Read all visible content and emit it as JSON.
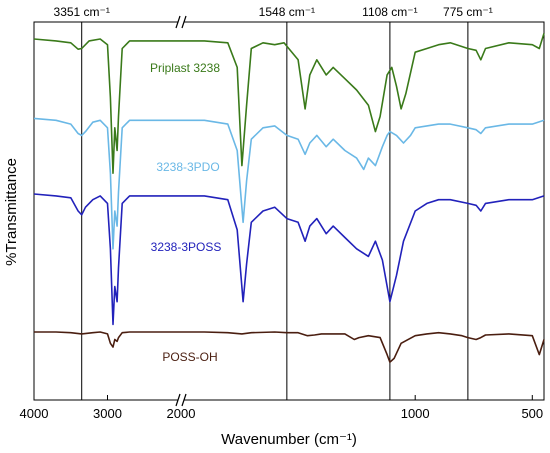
{
  "chart_data": {
    "type": "line",
    "xlabel": "Wavenumber (cm⁻¹)",
    "ylabel": "%Transmittance",
    "xlim": [
      4000,
      450
    ],
    "axis_break": [
      2000,
      2000
    ],
    "x_ticks": [
      4000,
      3000,
      2000,
      1000,
      500
    ],
    "x_tick_labels": [
      "4000",
      "3000",
      "2000",
      "1000",
      "500"
    ],
    "reference_lines": [
      {
        "x": 3351,
        "label": "3351 cm⁻¹"
      },
      {
        "x": 1548,
        "label": "1548 cm⁻¹"
      },
      {
        "x": 1108,
        "label": "1108 cm⁻¹"
      },
      {
        "x": 775,
        "label": "775 cm⁻¹"
      }
    ],
    "series": [
      {
        "name": "Priplast 3238",
        "color": "#3a7a1a",
        "points": [
          [
            4000,
            0.955
          ],
          [
            3700,
            0.95
          ],
          [
            3500,
            0.945
          ],
          [
            3400,
            0.928
          ],
          [
            3351,
            0.93
          ],
          [
            3250,
            0.95
          ],
          [
            3100,
            0.955
          ],
          [
            3000,
            0.94
          ],
          [
            2960,
            0.8
          ],
          [
            2925,
            0.6
          ],
          [
            2900,
            0.72
          ],
          [
            2870,
            0.66
          ],
          [
            2850,
            0.75
          ],
          [
            2800,
            0.93
          ],
          [
            2700,
            0.95
          ],
          [
            2000,
            0.95
          ],
          [
            1900,
            0.95
          ],
          [
            1800,
            0.945
          ],
          [
            1760,
            0.88
          ],
          [
            1740,
            0.62
          ],
          [
            1720,
            0.78
          ],
          [
            1700,
            0.93
          ],
          [
            1650,
            0.945
          ],
          [
            1600,
            0.94
          ],
          [
            1560,
            0.945
          ],
          [
            1500,
            0.9
          ],
          [
            1470,
            0.77
          ],
          [
            1450,
            0.86
          ],
          [
            1420,
            0.9
          ],
          [
            1380,
            0.86
          ],
          [
            1350,
            0.88
          ],
          [
            1300,
            0.85
          ],
          [
            1250,
            0.82
          ],
          [
            1200,
            0.78
          ],
          [
            1170,
            0.71
          ],
          [
            1150,
            0.75
          ],
          [
            1120,
            0.86
          ],
          [
            1100,
            0.88
          ],
          [
            1080,
            0.83
          ],
          [
            1060,
            0.77
          ],
          [
            1040,
            0.81
          ],
          [
            1000,
            0.92
          ],
          [
            950,
            0.93
          ],
          [
            900,
            0.94
          ],
          [
            850,
            0.945
          ],
          [
            775,
            0.93
          ],
          [
            740,
            0.925
          ],
          [
            720,
            0.9
          ],
          [
            700,
            0.93
          ],
          [
            600,
            0.945
          ],
          [
            500,
            0.94
          ],
          [
            470,
            0.93
          ],
          [
            450,
            0.97
          ]
        ]
      },
      {
        "name": "3238-3PDO",
        "color": "#6ab8e6",
        "points": [
          [
            4000,
            0.745
          ],
          [
            3700,
            0.74
          ],
          [
            3500,
            0.73
          ],
          [
            3400,
            0.705
          ],
          [
            3351,
            0.7
          ],
          [
            3300,
            0.71
          ],
          [
            3200,
            0.735
          ],
          [
            3100,
            0.74
          ],
          [
            3000,
            0.72
          ],
          [
            2960,
            0.6
          ],
          [
            2925,
            0.4
          ],
          [
            2900,
            0.5
          ],
          [
            2870,
            0.46
          ],
          [
            2850,
            0.55
          ],
          [
            2800,
            0.72
          ],
          [
            2700,
            0.74
          ],
          [
            2000,
            0.74
          ],
          [
            1900,
            0.74
          ],
          [
            1800,
            0.73
          ],
          [
            1760,
            0.66
          ],
          [
            1735,
            0.47
          ],
          [
            1720,
            0.58
          ],
          [
            1700,
            0.69
          ],
          [
            1650,
            0.72
          ],
          [
            1600,
            0.725
          ],
          [
            1548,
            0.7
          ],
          [
            1500,
            0.69
          ],
          [
            1470,
            0.65
          ],
          [
            1450,
            0.68
          ],
          [
            1420,
            0.7
          ],
          [
            1380,
            0.67
          ],
          [
            1350,
            0.69
          ],
          [
            1300,
            0.66
          ],
          [
            1250,
            0.64
          ],
          [
            1220,
            0.61
          ],
          [
            1200,
            0.64
          ],
          [
            1170,
            0.62
          ],
          [
            1140,
            0.67
          ],
          [
            1120,
            0.7
          ],
          [
            1108,
            0.71
          ],
          [
            1080,
            0.7
          ],
          [
            1050,
            0.68
          ],
          [
            1020,
            0.7
          ],
          [
            1000,
            0.72
          ],
          [
            950,
            0.725
          ],
          [
            900,
            0.73
          ],
          [
            850,
            0.73
          ],
          [
            775,
            0.72
          ],
          [
            740,
            0.715
          ],
          [
            720,
            0.705
          ],
          [
            700,
            0.72
          ],
          [
            600,
            0.73
          ],
          [
            500,
            0.73
          ],
          [
            450,
            0.74
          ]
        ]
      },
      {
        "name": "3238-3POSS",
        "color": "#2222bb",
        "points": [
          [
            4000,
            0.545
          ],
          [
            3700,
            0.54
          ],
          [
            3500,
            0.535
          ],
          [
            3400,
            0.5
          ],
          [
            3351,
            0.49
          ],
          [
            3300,
            0.51
          ],
          [
            3200,
            0.53
          ],
          [
            3100,
            0.54
          ],
          [
            3000,
            0.52
          ],
          [
            2960,
            0.4
          ],
          [
            2925,
            0.2
          ],
          [
            2900,
            0.3
          ],
          [
            2870,
            0.26
          ],
          [
            2850,
            0.35
          ],
          [
            2800,
            0.52
          ],
          [
            2700,
            0.54
          ],
          [
            2000,
            0.54
          ],
          [
            1900,
            0.54
          ],
          [
            1800,
            0.53
          ],
          [
            1760,
            0.45
          ],
          [
            1735,
            0.26
          ],
          [
            1720,
            0.36
          ],
          [
            1700,
            0.47
          ],
          [
            1650,
            0.5
          ],
          [
            1600,
            0.51
          ],
          [
            1548,
            0.48
          ],
          [
            1500,
            0.47
          ],
          [
            1470,
            0.42
          ],
          [
            1450,
            0.46
          ],
          [
            1420,
            0.48
          ],
          [
            1380,
            0.44
          ],
          [
            1350,
            0.46
          ],
          [
            1300,
            0.43
          ],
          [
            1250,
            0.4
          ],
          [
            1200,
            0.38
          ],
          [
            1170,
            0.42
          ],
          [
            1140,
            0.37
          ],
          [
            1108,
            0.26
          ],
          [
            1080,
            0.33
          ],
          [
            1050,
            0.42
          ],
          [
            1000,
            0.5
          ],
          [
            950,
            0.52
          ],
          [
            900,
            0.53
          ],
          [
            850,
            0.53
          ],
          [
            775,
            0.52
          ],
          [
            740,
            0.515
          ],
          [
            720,
            0.5
          ],
          [
            700,
            0.52
          ],
          [
            600,
            0.53
          ],
          [
            500,
            0.53
          ],
          [
            450,
            0.54
          ]
        ]
      },
      {
        "name": "POSS-OH",
        "color": "#4a1e10",
        "points": [
          [
            4000,
            0.18
          ],
          [
            3700,
            0.18
          ],
          [
            3500,
            0.178
          ],
          [
            3351,
            0.175
          ],
          [
            3200,
            0.178
          ],
          [
            3100,
            0.18
          ],
          [
            3000,
            0.175
          ],
          [
            2960,
            0.15
          ],
          [
            2925,
            0.14
          ],
          [
            2900,
            0.16
          ],
          [
            2870,
            0.155
          ],
          [
            2850,
            0.165
          ],
          [
            2800,
            0.178
          ],
          [
            2700,
            0.18
          ],
          [
            2000,
            0.18
          ],
          [
            1900,
            0.18
          ],
          [
            1800,
            0.178
          ],
          [
            1740,
            0.175
          ],
          [
            1700,
            0.178
          ],
          [
            1600,
            0.18
          ],
          [
            1548,
            0.178
          ],
          [
            1500,
            0.178
          ],
          [
            1460,
            0.17
          ],
          [
            1430,
            0.172
          ],
          [
            1400,
            0.175
          ],
          [
            1300,
            0.175
          ],
          [
            1260,
            0.16
          ],
          [
            1240,
            0.165
          ],
          [
            1200,
            0.17
          ],
          [
            1150,
            0.165
          ],
          [
            1120,
            0.12
          ],
          [
            1108,
            0.1
          ],
          [
            1090,
            0.11
          ],
          [
            1060,
            0.15
          ],
          [
            1000,
            0.17
          ],
          [
            950,
            0.175
          ],
          [
            900,
            0.178
          ],
          [
            850,
            0.175
          ],
          [
            800,
            0.17
          ],
          [
            775,
            0.165
          ],
          [
            740,
            0.16
          ],
          [
            720,
            0.165
          ],
          [
            700,
            0.172
          ],
          [
            600,
            0.175
          ],
          [
            500,
            0.17
          ],
          [
            470,
            0.12
          ],
          [
            450,
            0.16
          ]
        ]
      }
    ]
  }
}
